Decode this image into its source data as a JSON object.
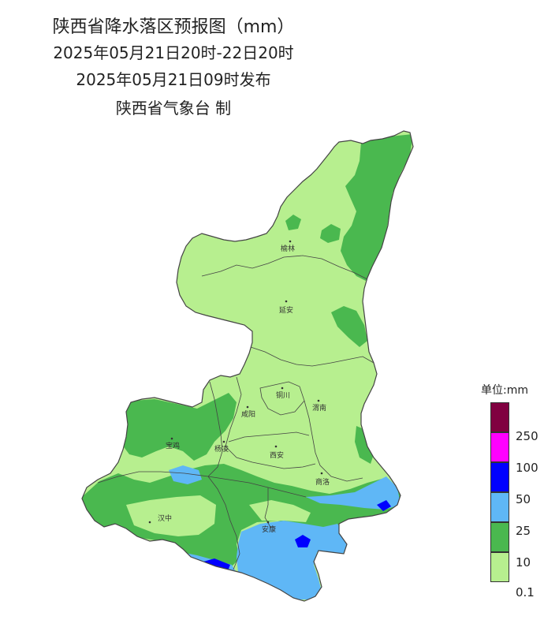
{
  "title": {
    "line1": "陕西省降水落区预报图（mm）",
    "line2": "2025年05月21日20时-22日20时",
    "line3": "2025年05月21日09时发布",
    "line4": "陕西省气象台 制"
  },
  "colors": {
    "c_0_1": "#b7ef8f",
    "c_10": "#4ab84f",
    "c_25": "#5fb7f6",
    "c_50": "#0000ff",
    "c_100": "#ff00ff",
    "c_250": "#800040",
    "boundary": "#444444"
  },
  "map": {
    "cities": [
      {
        "name": "榆林"
      },
      {
        "name": "延安"
      },
      {
        "name": "铜川"
      },
      {
        "name": "渭南"
      },
      {
        "name": "咸阳"
      },
      {
        "name": "宝鸡"
      },
      {
        "name": "杨凌"
      },
      {
        "name": "西安"
      },
      {
        "name": "商洛"
      },
      {
        "name": "汉中"
      },
      {
        "name": "安康"
      }
    ]
  },
  "legend": {
    "title": "单位:mm",
    "items": [
      {
        "label": "250",
        "color": "#800040"
      },
      {
        "label": "100",
        "color": "#ff00ff"
      },
      {
        "label": "50",
        "color": "#0000ff"
      },
      {
        "label": "25",
        "color": "#5fb7f6"
      },
      {
        "label": "10",
        "color": "#4ab84f"
      },
      {
        "label": "0.1",
        "color": "#b7ef8f"
      }
    ]
  }
}
